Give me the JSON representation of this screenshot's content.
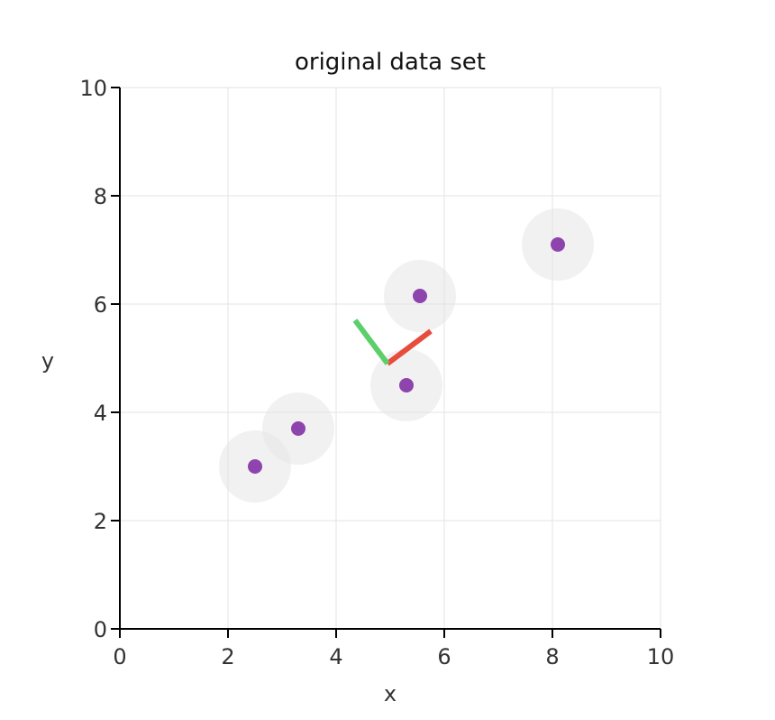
{
  "chart_data": {
    "type": "scatter",
    "title": "original data set",
    "xlabel": "x",
    "ylabel": "y",
    "xlim": [
      0,
      10
    ],
    "ylim": [
      0,
      10
    ],
    "xticks": [
      0,
      2,
      4,
      6,
      8,
      10
    ],
    "yticks": [
      0,
      2,
      4,
      6,
      8,
      10
    ],
    "grid": true,
    "point_color": "#8e44ad",
    "halo_color": "#e6e6e6",
    "points": [
      {
        "x": 2.5,
        "y": 3.0
      },
      {
        "x": 3.3,
        "y": 3.7
      },
      {
        "x": 5.3,
        "y": 4.5
      },
      {
        "x": 5.55,
        "y": 6.15
      },
      {
        "x": 8.1,
        "y": 7.1
      }
    ],
    "vectors": [
      {
        "from": [
          4.95,
          4.9
        ],
        "to": [
          5.75,
          5.5
        ],
        "color": "#e74c3c"
      },
      {
        "from": [
          4.95,
          4.9
        ],
        "to": [
          4.35,
          5.7
        ],
        "color": "#5ccf6a"
      }
    ]
  }
}
